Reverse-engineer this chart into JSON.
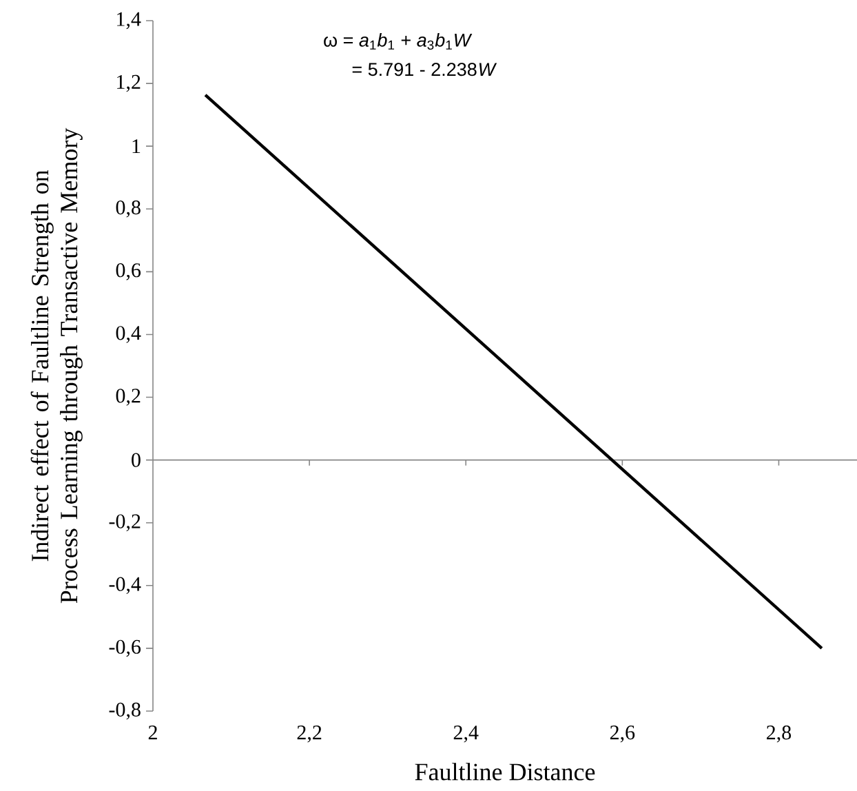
{
  "chart_data": {
    "type": "line",
    "xlabel": "Faultline Distance",
    "ylabel": "Indirect effect of Faultline Strength on Process Learning through Transactive Memory",
    "annotations": [
      "ω = *a*$_{1}$*b*$_{1}$ + *a*$_{3}$*b*$_{1}$*W*",
      "= 5.791 - 2.238",
      "W"
    ],
    "ref_lines": [
      {
        "axis": "y",
        "value": 0,
        "color": "#868686"
      }
    ],
    "series": [
      {
        "color": "#000000",
        "x": [
          2.067,
          2.855
        ],
        "values": [
          1.163,
          -0.6
        ]
      }
    ],
    "xlim": [
      2,
      2.9
    ],
    "ylim": [
      -0.8,
      1.4
    ],
    "xticks": [
      2,
      {
        "value": 2.2,
        "label": "2,2"
      },
      {
        "value": 2.4,
        "label": "2,4"
      },
      {
        "value": 2.6,
        "label": "2,6"
      },
      {
        "value": 2.8,
        "label": "2,8"
      }
    ],
    "yticks": [
      {
        "value": -0.8,
        "label": "-0,8"
      },
      {
        "value": -0.6,
        "label": "-0,6"
      },
      {
        "value": -0.4,
        "label": "-0,4"
      },
      {
        "value": -0.2,
        "label": "-0,2"
      },
      0,
      {
        "value": 0.2,
        "label": "0,2"
      },
      {
        "value": 0.4,
        "label": "0,4"
      },
      {
        "value": 0.6,
        "label": "0,6"
      },
      {
        "value": 0.8,
        "label": "0,8"
      },
      1,
      {
        "value": 1.2,
        "label": "1,2"
      },
      {
        "value": 1.4,
        "label": "1,4"
      }
    ],
    "grid": false,
    "marker": "none",
    "line_style": "solid"
  }
}
